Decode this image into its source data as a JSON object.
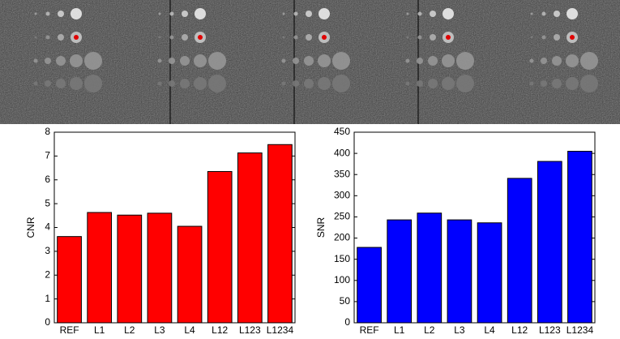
{
  "chart_data": [
    {
      "type": "bar",
      "ylabel": "CNR",
      "categories": [
        "REF",
        "L1",
        "L2",
        "L3",
        "L4",
        "L12",
        "L123",
        "L1234"
      ],
      "values": [
        3.62,
        4.63,
        4.52,
        4.6,
        4.05,
        6.35,
        7.13,
        7.48
      ],
      "color": "#ff0000",
      "ylim": [
        0,
        8
      ],
      "yticks": [
        0,
        1,
        2,
        3,
        4,
        5,
        6,
        7,
        8
      ]
    },
    {
      "type": "bar",
      "ylabel": "SNR",
      "categories": [
        "REF",
        "L1",
        "L2",
        "L3",
        "L4",
        "L12",
        "L123",
        "L1234"
      ],
      "values": [
        178,
        243,
        259,
        243,
        236,
        341,
        381,
        405
      ],
      "color": "#0000ff",
      "ylim": [
        0,
        450
      ],
      "yticks": [
        0,
        50,
        100,
        150,
        200,
        250,
        300,
        350,
        400,
        450
      ]
    }
  ]
}
